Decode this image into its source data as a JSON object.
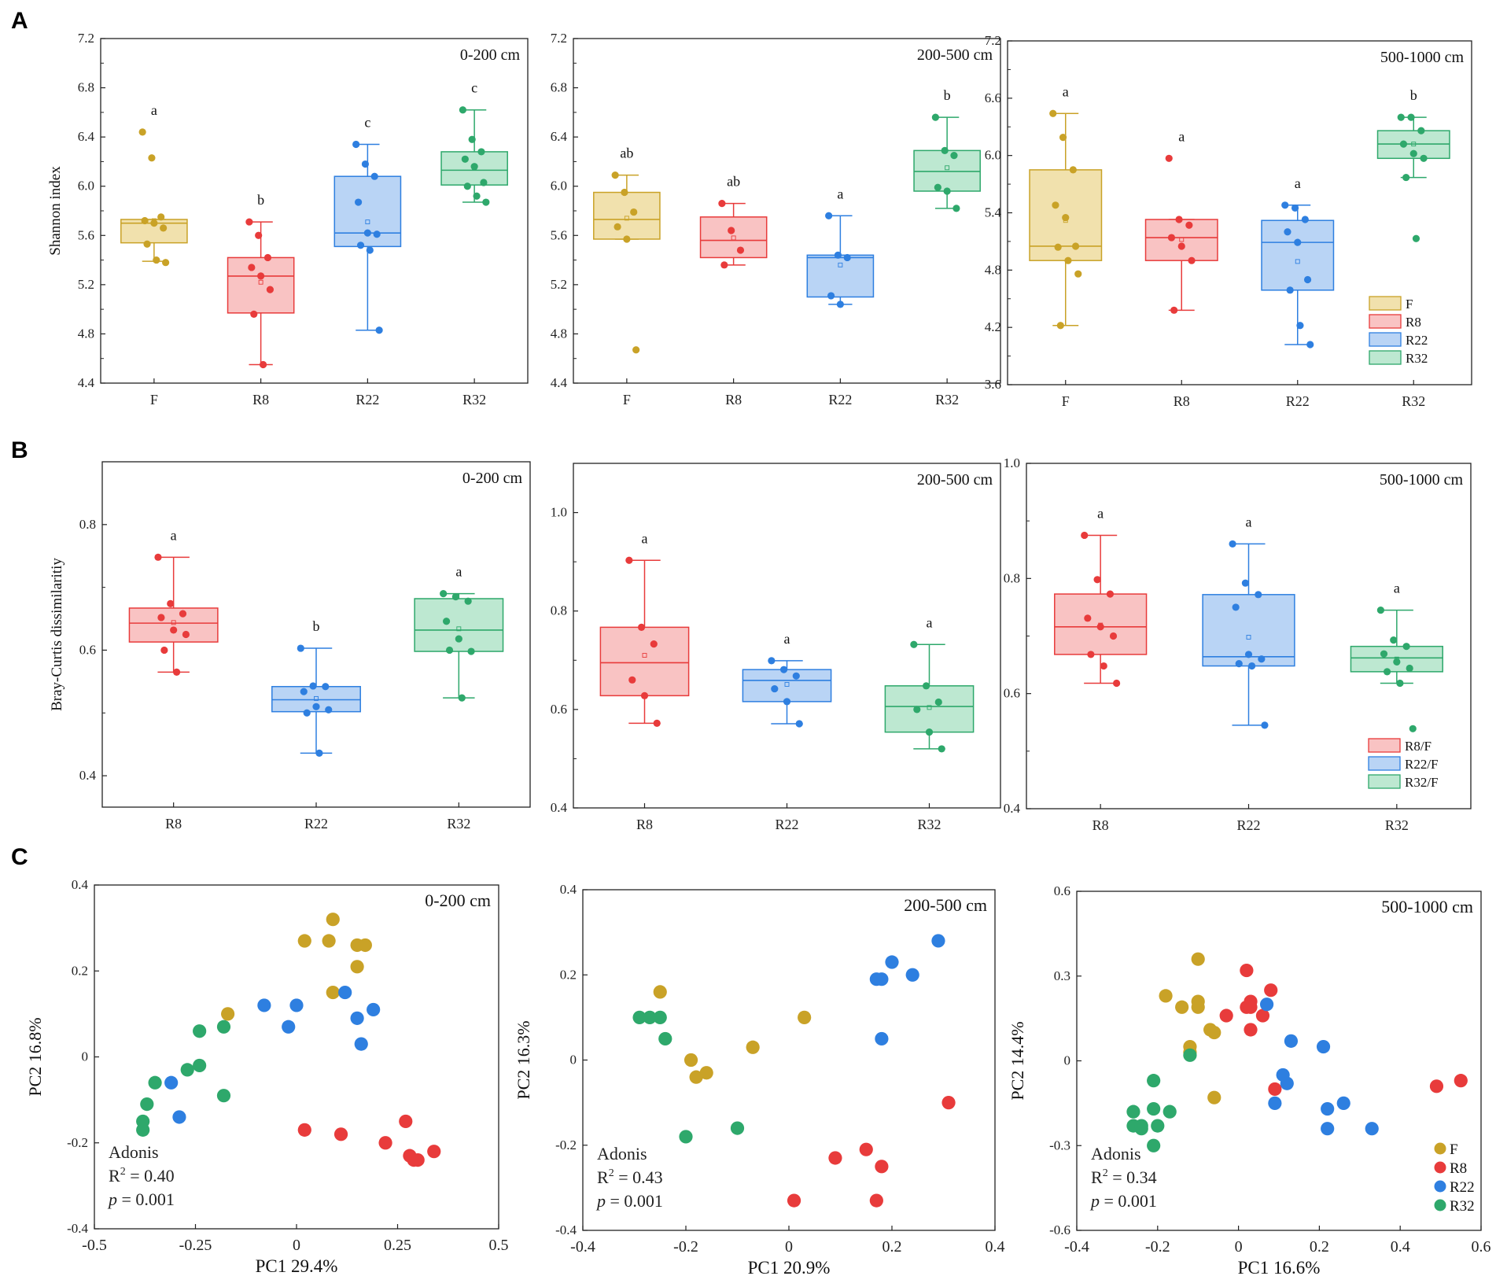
{
  "figure": {
    "panel_labels": [
      "A",
      "B",
      "C"
    ]
  },
  "colors": {
    "F": "#c9a227",
    "R8": "#e83b3b",
    "R22": "#2e7fe0",
    "R32": "#2ea86b",
    "F_fill": "#f1e1ad",
    "R8_fill": "#f9c3c3",
    "R22_fill": "#b9d4f5",
    "R32_fill": "#bde8d1",
    "axis": "#222222"
  },
  "chart_data": [
    {
      "id": "A1",
      "type": "box",
      "panel": "A",
      "title": "0-200 cm",
      "ylabel": "Shannon index",
      "ylim": [
        4.4,
        7.2
      ],
      "yticks": [
        "4.4",
        "4.8",
        "5.2",
        "5.6",
        "6.0",
        "6.4",
        "6.8",
        "7.2"
      ],
      "categories": [
        "F",
        "R8",
        "R22",
        "R32"
      ],
      "letters": [
        "a",
        "b",
        "c",
        "c"
      ],
      "groups": [
        {
          "name": "F",
          "q1": 5.54,
          "median": 5.7,
          "q3": 5.73,
          "mean": 5.72,
          "whisker_low": 5.39,
          "whisker_high": 5.73,
          "points": [
            6.44,
            6.23,
            5.75,
            5.72,
            5.7,
            5.66,
            5.53,
            5.4,
            5.38
          ]
        },
        {
          "name": "R8",
          "q1": 4.97,
          "median": 5.27,
          "q3": 5.42,
          "mean": 5.22,
          "whisker_low": 4.55,
          "whisker_high": 5.71,
          "points": [
            5.71,
            5.6,
            5.42,
            5.34,
            5.27,
            5.16,
            4.96,
            4.55
          ]
        },
        {
          "name": "R22",
          "q1": 5.51,
          "median": 5.62,
          "q3": 6.08,
          "mean": 5.71,
          "whisker_low": 4.83,
          "whisker_high": 6.34,
          "points": [
            6.34,
            6.18,
            6.08,
            5.87,
            5.62,
            5.61,
            5.52,
            5.48,
            4.83
          ]
        },
        {
          "name": "R32",
          "q1": 6.01,
          "median": 6.13,
          "q3": 6.28,
          "mean": 6.15,
          "whisker_low": 5.87,
          "whisker_high": 6.62,
          "points": [
            6.62,
            6.38,
            6.28,
            6.22,
            6.16,
            6.03,
            6.0,
            5.92,
            5.87
          ]
        }
      ]
    },
    {
      "id": "A2",
      "type": "box",
      "panel": "A",
      "title": "200-500 cm",
      "ylabel": "",
      "ylim": [
        4.4,
        7.2
      ],
      "yticks": [
        "4.4",
        "4.8",
        "5.2",
        "5.6",
        "6.0",
        "6.4",
        "6.8",
        "7.2"
      ],
      "categories": [
        "F",
        "R8",
        "R22",
        "R32"
      ],
      "letters": [
        "ab",
        "ab",
        "a",
        "b"
      ],
      "groups": [
        {
          "name": "F",
          "q1": 5.57,
          "median": 5.73,
          "q3": 5.95,
          "mean": 5.74,
          "whisker_low": 5.57,
          "whisker_high": 6.09,
          "points": [
            6.09,
            5.95,
            5.79,
            5.67,
            5.57,
            4.67
          ]
        },
        {
          "name": "R8",
          "q1": 5.42,
          "median": 5.56,
          "q3": 5.75,
          "mean": 5.58,
          "whisker_low": 5.36,
          "whisker_high": 5.86,
          "points": [
            5.86,
            5.64,
            5.48,
            5.36
          ]
        },
        {
          "name": "R22",
          "q1": 5.1,
          "median": 5.42,
          "q3": 5.44,
          "mean": 5.36,
          "whisker_low": 5.04,
          "whisker_high": 5.76,
          "points": [
            5.76,
            5.44,
            5.42,
            5.11,
            5.04
          ]
        },
        {
          "name": "R32",
          "q1": 5.96,
          "median": 6.12,
          "q3": 6.29,
          "mean": 6.15,
          "whisker_low": 5.82,
          "whisker_high": 6.56,
          "points": [
            6.56,
            6.29,
            6.25,
            5.99,
            5.96,
            5.82
          ]
        }
      ]
    },
    {
      "id": "A3",
      "type": "box",
      "panel": "A",
      "title": "500-1000 cm",
      "ylabel": "",
      "ylim": [
        3.6,
        7.2
      ],
      "yticks": [
        "3.6",
        "4.2",
        "4.8",
        "5.4",
        "6.0",
        "6.6",
        "7.2"
      ],
      "categories": [
        "F",
        "R8",
        "R22",
        "R32"
      ],
      "letters": [
        "a",
        "a",
        "a",
        "b"
      ],
      "legend": [
        "F",
        "R8",
        "R22",
        "R32"
      ],
      "groups": [
        {
          "name": "F",
          "q1": 4.9,
          "median": 5.05,
          "q3": 5.85,
          "mean": 5.32,
          "whisker_low": 4.22,
          "whisker_high": 6.44,
          "points": [
            6.44,
            6.19,
            5.85,
            5.48,
            5.35,
            5.05,
            5.04,
            4.9,
            4.76,
            4.22
          ]
        },
        {
          "name": "R8",
          "q1": 4.9,
          "median": 5.14,
          "q3": 5.33,
          "mean": 5.12,
          "whisker_low": 4.38,
          "whisker_high": 5.33,
          "points": [
            5.97,
            5.33,
            5.27,
            5.14,
            5.05,
            4.9,
            4.38
          ]
        },
        {
          "name": "R22",
          "q1": 4.59,
          "median": 5.09,
          "q3": 5.32,
          "mean": 4.89,
          "whisker_low": 4.02,
          "whisker_high": 5.48,
          "points": [
            5.48,
            5.45,
            5.33,
            5.2,
            5.09,
            4.7,
            4.59,
            4.22,
            4.02
          ]
        },
        {
          "name": "R32",
          "q1": 5.97,
          "median": 6.12,
          "q3": 6.26,
          "mean": 6.12,
          "whisker_low": 5.77,
          "whisker_high": 6.4,
          "points": [
            6.4,
            6.4,
            6.26,
            6.12,
            6.02,
            5.97,
            5.77,
            5.13
          ]
        }
      ]
    },
    {
      "id": "B1",
      "type": "box",
      "panel": "B",
      "title": "0-200 cm",
      "ylabel": "Bray-Curtis dissimilaritiy",
      "ylim": [
        0.35,
        0.9
      ],
      "yticks": [
        "0.4",
        "0.6",
        "0.8"
      ],
      "ytick_values": [
        0.4,
        0.6,
        0.8
      ],
      "categories": [
        "R8",
        "R22",
        "R32"
      ],
      "letters": [
        "a",
        "b",
        "a"
      ],
      "groups": [
        {
          "name": "R8",
          "q1": 0.613,
          "median": 0.643,
          "q3": 0.667,
          "mean": 0.644,
          "whisker_low": 0.565,
          "whisker_high": 0.748,
          "points": [
            0.748,
            0.674,
            0.658,
            0.652,
            0.632,
            0.625,
            0.6,
            0.565
          ]
        },
        {
          "name": "R22",
          "q1": 0.502,
          "median": 0.521,
          "q3": 0.542,
          "mean": 0.523,
          "whisker_low": 0.436,
          "whisker_high": 0.603,
          "points": [
            0.603,
            0.543,
            0.542,
            0.534,
            0.51,
            0.505,
            0.5,
            0.436
          ]
        },
        {
          "name": "R32",
          "q1": 0.598,
          "median": 0.632,
          "q3": 0.682,
          "mean": 0.634,
          "whisker_low": 0.524,
          "whisker_high": 0.69,
          "points": [
            0.69,
            0.685,
            0.678,
            0.646,
            0.618,
            0.598,
            0.6,
            0.524
          ]
        }
      ]
    },
    {
      "id": "B2",
      "type": "box",
      "panel": "B",
      "title": "200-500 cm",
      "ylabel": "",
      "ylim": [
        0.4,
        1.1
      ],
      "yticks": [
        "0.4",
        "0.6",
        "0.8",
        "1.0"
      ],
      "ytick_values": [
        0.4,
        0.6,
        0.8,
        1.0
      ],
      "categories": [
        "R8",
        "R22",
        "R32"
      ],
      "letters": [
        "a",
        "a",
        "a"
      ],
      "groups": [
        {
          "name": "R8",
          "q1": 0.628,
          "median": 0.695,
          "q3": 0.767,
          "mean": 0.71,
          "whisker_low": 0.572,
          "whisker_high": 0.903,
          "points": [
            0.903,
            0.767,
            0.733,
            0.66,
            0.628,
            0.572
          ]
        },
        {
          "name": "R22",
          "q1": 0.616,
          "median": 0.659,
          "q3": 0.681,
          "mean": 0.651,
          "whisker_low": 0.571,
          "whisker_high": 0.699,
          "points": [
            0.699,
            0.681,
            0.668,
            0.642,
            0.616,
            0.571
          ]
        },
        {
          "name": "R32",
          "q1": 0.554,
          "median": 0.606,
          "q3": 0.648,
          "mean": 0.604,
          "whisker_low": 0.52,
          "whisker_high": 0.732,
          "points": [
            0.732,
            0.648,
            0.615,
            0.6,
            0.554,
            0.52
          ]
        }
      ]
    },
    {
      "id": "B3",
      "type": "box",
      "panel": "B",
      "title": "500-1000 cm",
      "ylabel": "",
      "ylim": [
        0.4,
        1.0
      ],
      "yticks": [
        "0.4",
        "0.6",
        "0.8",
        "1.0"
      ],
      "ytick_values": [
        0.4,
        0.6,
        0.8,
        1.0
      ],
      "categories": [
        "R8",
        "R22",
        "R32"
      ],
      "letters": [
        "a",
        "a",
        "a"
      ],
      "legend": [
        "R8/F",
        "R22/F",
        "R32/F"
      ],
      "groups": [
        {
          "name": "R8",
          "q1": 0.668,
          "median": 0.716,
          "q3": 0.773,
          "mean": 0.719,
          "whisker_low": 0.618,
          "whisker_high": 0.875,
          "points": [
            0.875,
            0.798,
            0.773,
            0.731,
            0.716,
            0.7,
            0.668,
            0.648,
            0.618
          ]
        },
        {
          "name": "R22",
          "q1": 0.648,
          "median": 0.664,
          "q3": 0.772,
          "mean": 0.698,
          "whisker_low": 0.545,
          "whisker_high": 0.86,
          "points": [
            0.86,
            0.792,
            0.772,
            0.75,
            0.668,
            0.66,
            0.652,
            0.648,
            0.545
          ]
        },
        {
          "name": "R32",
          "q1": 0.638,
          "median": 0.662,
          "q3": 0.682,
          "mean": 0.66,
          "whisker_low": 0.618,
          "whisker_high": 0.745,
          "points": [
            0.745,
            0.693,
            0.682,
            0.669,
            0.655,
            0.644,
            0.638,
            0.618,
            0.539
          ]
        }
      ]
    },
    {
      "id": "C1",
      "type": "scatter",
      "panel": "C",
      "title": "0-200  cm",
      "xlabel": "PC1 29.4%",
      "ylabel": "PC2 16.8%",
      "xlim": [
        -0.5,
        0.5
      ],
      "ylim": [
        -0.4,
        0.4
      ],
      "xticks": [
        "-0.5",
        "-0.25",
        "0",
        "0.25",
        "0.5"
      ],
      "xtick_values": [
        -0.5,
        -0.25,
        0,
        0.25,
        0.5
      ],
      "yticks": [
        "-0.4",
        "-0.2",
        "0",
        "0.2",
        "0.4"
      ],
      "ytick_values": [
        -0.4,
        -0.2,
        0,
        0.2,
        0.4
      ],
      "stats": {
        "method": "Adonis",
        "r2_label": "R",
        "r2_value": " = 0.40",
        "p_label": "p",
        "p_value": " = 0.001"
      },
      "series": [
        {
          "name": "F",
          "x": [
            0.09,
            0.02,
            0.08,
            0.15,
            0.17,
            0.15,
            0.09,
            -0.17
          ],
          "y": [
            0.32,
            0.27,
            0.27,
            0.26,
            0.26,
            0.21,
            0.15,
            0.1
          ]
        },
        {
          "name": "R8",
          "x": [
            0.02,
            0.11,
            0.22,
            0.27,
            0.28,
            0.29,
            0.3,
            0.34
          ],
          "y": [
            -0.17,
            -0.18,
            -0.2,
            -0.15,
            -0.23,
            -0.24,
            -0.24,
            -0.22
          ]
        },
        {
          "name": "R22",
          "x": [
            -0.08,
            0.0,
            -0.02,
            0.12,
            0.15,
            0.19,
            0.16,
            -0.31,
            -0.29
          ],
          "y": [
            0.12,
            0.12,
            0.07,
            0.15,
            0.09,
            0.11,
            0.03,
            -0.06,
            -0.14
          ]
        },
        {
          "name": "R32",
          "x": [
            -0.24,
            -0.18,
            -0.24,
            -0.27,
            -0.35,
            -0.37,
            -0.38,
            -0.38,
            -0.18
          ],
          "y": [
            0.06,
            0.07,
            -0.02,
            -0.03,
            -0.06,
            -0.11,
            -0.15,
            -0.17,
            -0.09
          ]
        }
      ]
    },
    {
      "id": "C2",
      "type": "scatter",
      "panel": "C",
      "title": "200-500  cm",
      "xlabel": "PC1 20.9%",
      "ylabel": "PC2 16.3%",
      "xlim": [
        -0.4,
        0.4
      ],
      "ylim": [
        -0.4,
        0.4
      ],
      "xticks": [
        "-0.4",
        "-0.2",
        "0",
        "0.2",
        "0.4"
      ],
      "xtick_values": [
        -0.4,
        -0.2,
        0,
        0.2,
        0.4
      ],
      "yticks": [
        "-0.4",
        "-0.2",
        "0",
        "0.2",
        "0.4"
      ],
      "ytick_values": [
        -0.4,
        -0.2,
        0,
        0.2,
        0.4
      ],
      "stats": {
        "method": "Adonis",
        "r2_label": "R",
        "r2_value": " = 0.43",
        "p_label": "p",
        "p_value": " = 0.001"
      },
      "series": [
        {
          "name": "F",
          "x": [
            -0.25,
            0.03,
            -0.07,
            -0.19,
            -0.18,
            -0.16
          ],
          "y": [
            0.16,
            0.1,
            0.03,
            0.0,
            -0.04,
            -0.03
          ]
        },
        {
          "name": "R8",
          "x": [
            0.31,
            0.15,
            0.09,
            0.18,
            0.01,
            0.17
          ],
          "y": [
            -0.1,
            -0.21,
            -0.23,
            -0.25,
            -0.33,
            -0.33
          ]
        },
        {
          "name": "R22",
          "x": [
            0.29,
            0.2,
            0.24,
            0.17,
            0.18,
            0.18
          ],
          "y": [
            0.28,
            0.23,
            0.2,
            0.19,
            0.19,
            0.05
          ]
        },
        {
          "name": "R32",
          "x": [
            -0.29,
            -0.27,
            -0.25,
            -0.24,
            -0.1,
            -0.2
          ],
          "y": [
            0.1,
            0.1,
            0.1,
            0.05,
            -0.16,
            -0.18
          ]
        }
      ]
    },
    {
      "id": "C3",
      "type": "scatter",
      "panel": "C",
      "title": "500-1000  cm",
      "xlabel": "PC1 16.6%",
      "ylabel": "PC2 14.4%",
      "xlim": [
        -0.4,
        0.6
      ],
      "ylim": [
        -0.6,
        0.6
      ],
      "xticks": [
        "-0.4",
        "-0.2",
        "0",
        "0.2",
        "0.4",
        "0.6"
      ],
      "xtick_values": [
        -0.4,
        -0.2,
        0,
        0.2,
        0.4,
        0.6
      ],
      "yticks": [
        "-0.6",
        "-0.3",
        "0",
        "0.3",
        "0.6"
      ],
      "ytick_values": [
        -0.6,
        -0.3,
        0,
        0.3,
        0.6
      ],
      "legend": [
        "F",
        "R8",
        "R22",
        "R32"
      ],
      "stats": {
        "method": "Adonis",
        "r2_label": "R",
        "r2_value": " = 0.34",
        "p_label": "p",
        "p_value": " = 0.001"
      },
      "series": [
        {
          "name": "F",
          "x": [
            -0.1,
            -0.18,
            -0.14,
            -0.1,
            -0.1,
            -0.07,
            -0.06,
            -0.12,
            -0.12,
            -0.06
          ],
          "y": [
            0.36,
            0.23,
            0.19,
            0.21,
            0.19,
            0.11,
            0.1,
            0.05,
            0.03,
            -0.13
          ]
        },
        {
          "name": "R8",
          "x": [
            0.02,
            0.08,
            0.03,
            0.02,
            -0.03,
            0.03,
            0.06,
            0.03,
            0.09,
            0.49,
            0.55
          ],
          "y": [
            0.32,
            0.25,
            0.21,
            0.19,
            0.16,
            0.19,
            0.16,
            0.11,
            -0.1,
            -0.09,
            -0.07
          ]
        },
        {
          "name": "R22",
          "x": [
            0.07,
            0.13,
            0.21,
            0.11,
            0.12,
            0.09,
            0.22,
            0.26,
            0.22,
            0.33
          ],
          "y": [
            0.2,
            0.07,
            0.05,
            -0.05,
            -0.08,
            -0.15,
            -0.17,
            -0.15,
            -0.24,
            -0.24
          ]
        },
        {
          "name": "R32",
          "x": [
            -0.21,
            -0.26,
            -0.21,
            -0.17,
            -0.2,
            -0.26,
            -0.24,
            -0.24,
            -0.21,
            -0.12
          ],
          "y": [
            -0.07,
            -0.18,
            -0.17,
            -0.18,
            -0.23,
            -0.23,
            -0.24,
            -0.23,
            -0.3,
            0.02
          ]
        }
      ]
    }
  ]
}
